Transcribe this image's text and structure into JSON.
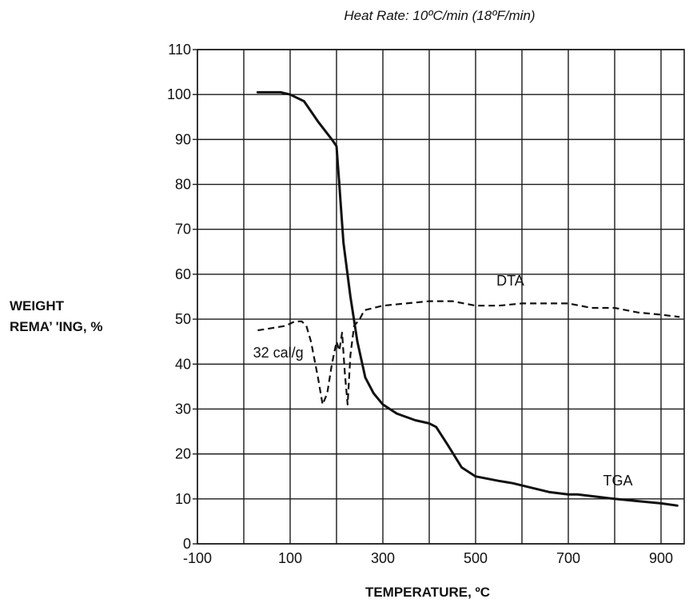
{
  "chart_data": {
    "type": "line",
    "subtitle": "Heat Rate: 10ºC/min (18ºF/min)",
    "xlabel": "TEMPERATURE, ºC",
    "ylabel_lines": [
      "WEIGHT",
      "REMA’ 'ING, %"
    ],
    "xlim": [
      -100,
      950
    ],
    "ylim": [
      0,
      110
    ],
    "x_ticks": [
      -100,
      100,
      300,
      500,
      700,
      900
    ],
    "x_tick_labels": [
      "-100",
      "100",
      "300",
      "500",
      "700",
      "900"
    ],
    "y_ticks": [
      0,
      10,
      20,
      30,
      40,
      50,
      60,
      70,
      80,
      90,
      100,
      110
    ],
    "y_tick_labels": [
      "0",
      "10",
      "20",
      "30",
      "40",
      "50",
      "60",
      "70",
      "80",
      "90",
      "100",
      "110"
    ],
    "x_grid": [
      -100,
      0,
      100,
      200,
      300,
      400,
      500,
      600,
      700,
      800,
      900
    ],
    "grid": true,
    "series": [
      {
        "name": "TGA",
        "style": "solid",
        "x": [
          30,
          80,
          100,
          130,
          160,
          190,
          200,
          206,
          215,
          230,
          245,
          262,
          280,
          300,
          330,
          370,
          400,
          415,
          440,
          470,
          500,
          550,
          580,
          620,
          660,
          700,
          720,
          760,
          800,
          850,
          900,
          935
        ],
        "y": [
          100.5,
          100.5,
          100,
          98.5,
          94,
          90,
          88.5,
          80,
          67,
          55,
          45,
          37,
          33.5,
          31,
          29,
          27.5,
          26.8,
          26,
          22,
          17,
          15,
          14,
          13.5,
          12.5,
          11.5,
          11,
          11,
          10.5,
          10,
          9.5,
          9,
          8.5
        ]
      },
      {
        "name": "DTA",
        "style": "dashed",
        "x": [
          30,
          60,
          90,
          110,
          125,
          135,
          145,
          160,
          170,
          180,
          190,
          200,
          206,
          212,
          218,
          224,
          230,
          238,
          250,
          260,
          300,
          350,
          400,
          450,
          500,
          550,
          600,
          650,
          700,
          750,
          800,
          850,
          900,
          940
        ],
        "y": [
          47.5,
          48,
          48.5,
          49.5,
          49.5,
          48.5,
          45,
          37,
          31,
          33.5,
          40,
          45,
          43,
          47,
          38,
          31,
          42,
          48.5,
          50,
          52,
          53,
          53.5,
          54,
          54,
          53,
          53,
          53.5,
          53.5,
          53.5,
          52.5,
          52.5,
          51.5,
          51,
          50.5
        ]
      }
    ],
    "annotations": [
      {
        "text": "DTA",
        "x": 545,
        "y": 57.5
      },
      {
        "text": "32 cal/g",
        "x": 20,
        "y": 41.5
      },
      {
        "text": "TGA",
        "x": 775,
        "y": 13
      }
    ]
  }
}
